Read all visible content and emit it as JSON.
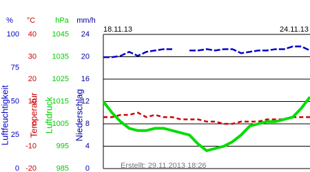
{
  "chart_data": {
    "type": "line",
    "start_date": "18.11.13",
    "end_date": "24.11.13",
    "footnote": "Erstellt: 29.11.2013 18:26",
    "axes": [
      {
        "unit": "%",
        "title": "Luftfeuchtigkeit",
        "color": "#0000cc",
        "ylim": [
          0,
          100
        ],
        "yticks": [
          0,
          25,
          50,
          75,
          100
        ]
      },
      {
        "unit": "°C",
        "title": "Temperatur",
        "color": "#cc0000",
        "ylim": [
          -20,
          40
        ],
        "yticks": [
          -20,
          -10,
          0,
          10,
          20,
          30,
          40
        ]
      },
      {
        "unit": "hPa",
        "title": "Luftdruck",
        "color": "#00cc00",
        "ylim": [
          985,
          1045
        ],
        "yticks": [
          985,
          995,
          1005,
          1015,
          1025,
          1035,
          1045
        ]
      },
      {
        "unit": "mm/h",
        "title": "Niederschlag",
        "color": "#000099",
        "ylim": [
          0,
          24
        ],
        "yticks": [
          0,
          4,
          8,
          12,
          16,
          20,
          24
        ]
      }
    ],
    "grid": true,
    "series": [
      {
        "axis": 0,
        "color": "#0000cc",
        "values": [
          83,
          83,
          84,
          87,
          84,
          87,
          88,
          89,
          89,
          null,
          88,
          88,
          89,
          88,
          89,
          89,
          86,
          87,
          88,
          88,
          89,
          89,
          91,
          91,
          88
        ]
      },
      {
        "axis": 1,
        "color": "#cc0000",
        "values": [
          3,
          3,
          4,
          4,
          5,
          3,
          4,
          3,
          3,
          2,
          2,
          2,
          1,
          1,
          0,
          0,
          1,
          1,
          1,
          2,
          2,
          2,
          3,
          3,
          3
        ]
      },
      {
        "axis": 2,
        "color": "#00dd00",
        "values": [
          1015,
          1010,
          1006,
          1003,
          1002,
          1002,
          1003,
          1003,
          1002,
          1001,
          1000,
          996,
          993,
          994,
          995,
          997,
          1000,
          1004,
          1005,
          1006,
          1006,
          1007,
          1008,
          1012,
          1017
        ]
      }
    ]
  }
}
